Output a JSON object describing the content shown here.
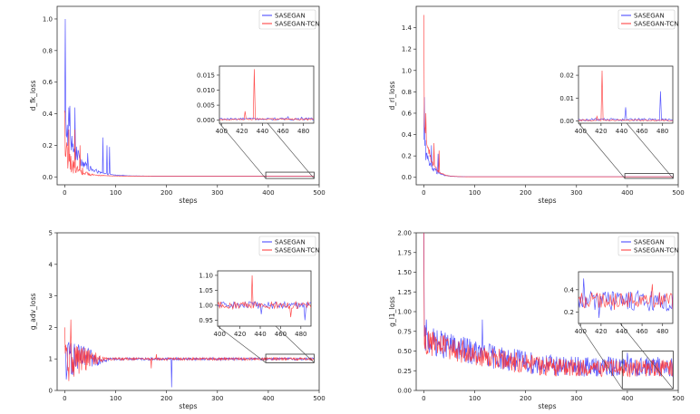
{
  "chart_data": [
    {
      "id": "d_fk",
      "type": "line",
      "title": "",
      "xlabel": "steps",
      "ylabel": "d_fk_loss",
      "xlim": [
        -15,
        500
      ],
      "ylim": [
        -0.05,
        1.08
      ],
      "xticks": [
        0,
        100,
        200,
        300,
        400,
        500
      ],
      "yticks": [
        0.0,
        0.2,
        0.4,
        0.6,
        0.8,
        1.0
      ],
      "ytick_labels": [
        "0.0",
        "0.2",
        "0.4",
        "0.6",
        "0.8",
        "1.0"
      ],
      "legend": [
        "SASEGAN",
        "SASEGAN-TCN"
      ],
      "legend_position": "top-right",
      "series": [
        {
          "name": "SASEGAN",
          "color": "#3b3bff",
          "kind": "spiky_decay",
          "start": 1.0,
          "floor": 0.005,
          "decay": 25,
          "noise": 0.12,
          "spikes": [
            [
              1,
              1.0
            ],
            [
              10,
              0.45
            ],
            [
              20,
              0.44
            ],
            [
              45,
              0.15
            ],
            [
              75,
              0.25
            ],
            [
              83,
              0.2
            ],
            [
              88,
              0.19
            ]
          ]
        },
        {
          "name": "SASEGAN-TCN",
          "color": "#ff3030",
          "kind": "spiky_decay",
          "start": 0.4,
          "floor": 0.005,
          "decay": 20,
          "noise": 0.1,
          "spikes": [
            [
              0,
              0.42
            ],
            [
              8,
              0.3
            ],
            [
              20,
              0.3
            ],
            [
              30,
              0.2
            ]
          ]
        }
      ],
      "inset": {
        "xlim": [
          398,
          490
        ],
        "ylim": [
          -0.001,
          0.018
        ],
        "xticks": [
          400,
          420,
          440,
          460,
          480
        ],
        "yticks": [
          0.0,
          0.005,
          0.01,
          0.015
        ],
        "ytick_labels": [
          "0.000",
          "0.005",
          "0.010",
          "0.015"
        ],
        "zoom_x": [
          395,
          490
        ],
        "zoom_y": [
          -0.01,
          0.03
        ],
        "series": [
          {
            "name": "SASEGAN",
            "color": "#3b3bff",
            "base": 0.0004,
            "noise": 0.0004,
            "spikes": [
              [
                465,
                0.0012
              ],
              [
                478,
                0.001
              ]
            ]
          },
          {
            "name": "SASEGAN-TCN",
            "color": "#ff3030",
            "base": 0.0003,
            "noise": 0.0003,
            "spikes": [
              [
                423,
                0.003
              ],
              [
                432,
                0.017
              ]
            ]
          }
        ]
      }
    },
    {
      "id": "d_rl",
      "type": "line",
      "title": "",
      "xlabel": "steps",
      "ylabel": "d_rl_loss",
      "xlim": [
        -15,
        500
      ],
      "ylim": [
        -0.07,
        1.6
      ],
      "xticks": [
        0,
        100,
        200,
        300,
        400,
        500
      ],
      "yticks": [
        0.0,
        0.2,
        0.4,
        0.6,
        0.8,
        1.0,
        1.2,
        1.4
      ],
      "ytick_labels": [
        "0.0",
        "0.2",
        "0.4",
        "0.6",
        "0.8",
        "1.0",
        "1.2",
        "1.4"
      ],
      "legend": [
        "SASEGAN",
        "SASEGAN-TCN"
      ],
      "legend_position": "top-right",
      "series": [
        {
          "name": "SASEGAN",
          "color": "#3b3bff",
          "kind": "spiky_decay",
          "start": 0.75,
          "floor": 0.005,
          "decay": 14,
          "noise": 0.1,
          "spikes": [
            [
              1,
              0.75
            ],
            [
              15,
              0.3
            ],
            [
              28,
              0.22
            ]
          ]
        },
        {
          "name": "SASEGAN-TCN",
          "color": "#ff3030",
          "kind": "spiky_decay",
          "start": 1.52,
          "floor": 0.005,
          "decay": 12,
          "noise": 0.08,
          "spikes": [
            [
              0,
              1.52
            ],
            [
              4,
              0.6
            ],
            [
              20,
              0.32
            ],
            [
              30,
              0.25
            ]
          ]
        }
      ],
      "inset": {
        "xlim": [
          398,
          490
        ],
        "ylim": [
          -0.001,
          0.024
        ],
        "xticks": [
          400,
          420,
          440,
          460,
          480
        ],
        "yticks": [
          0.0,
          0.01,
          0.02
        ],
        "ytick_labels": [
          "0.00",
          "0.01",
          "0.02"
        ],
        "zoom_x": [
          395,
          490
        ],
        "zoom_y": [
          -0.01,
          0.035
        ],
        "series": [
          {
            "name": "SASEGAN",
            "color": "#3b3bff",
            "base": 0.0006,
            "noise": 0.0006,
            "spikes": [
              [
                444,
                0.006
              ],
              [
                478,
                0.013
              ]
            ]
          },
          {
            "name": "SASEGAN-TCN",
            "color": "#ff3030",
            "base": 0.0003,
            "noise": 0.0003,
            "spikes": [
              [
                416,
                0.002
              ],
              [
                421,
                0.022
              ]
            ]
          }
        ]
      }
    },
    {
      "id": "g_adv",
      "type": "line",
      "title": "",
      "xlabel": "steps",
      "ylabel": "g_adv_loss",
      "xlim": [
        -15,
        500
      ],
      "ylim": [
        0,
        5
      ],
      "xticks": [
        0,
        100,
        200,
        300,
        400,
        500
      ],
      "yticks": [
        0,
        1,
        2,
        3,
        4,
        5
      ],
      "ytick_labels": [
        "0",
        "1",
        "2",
        "3",
        "4",
        "5"
      ],
      "legend": [
        "SASEGAN",
        "SASEGAN-TCN"
      ],
      "legend_position": "top-right",
      "series": [
        {
          "name": "SASEGAN",
          "color": "#3b3bff",
          "kind": "noisy_settle",
          "settle": 1.0,
          "start_noise": 0.6,
          "settle_noise": 0.04,
          "settle_steps": 90,
          "spikes": [
            [
              0,
              1.4
            ],
            [
              3,
              0.35
            ],
            [
              210,
              0.1
            ],
            [
              12,
              1.5
            ]
          ]
        },
        {
          "name": "SASEGAN-TCN",
          "color": "#ff3030",
          "kind": "noisy_settle",
          "settle": 1.0,
          "start_noise": 0.7,
          "settle_noise": 0.04,
          "settle_steps": 80,
          "spikes": [
            [
              0,
              2.0
            ],
            [
              12,
              2.25
            ],
            [
              8,
              0.3
            ],
            [
              170,
              0.7
            ],
            [
              180,
              1.15
            ]
          ]
        }
      ],
      "inset": {
        "xlim": [
          398,
          490
        ],
        "ylim": [
          0.93,
          1.115
        ],
        "xticks": [
          400,
          420,
          440,
          460,
          480
        ],
        "yticks": [
          0.95,
          1.0,
          1.05,
          1.1
        ],
        "ytick_labels": [
          "0.95",
          "1.00",
          "1.05",
          "1.10"
        ],
        "zoom_x": [
          395,
          490
        ],
        "zoom_y": [
          0.88,
          1.15
        ],
        "series": [
          {
            "name": "SASEGAN",
            "color": "#3b3bff",
            "base": 1.0,
            "noise": 0.012,
            "spikes": [
              [
                441,
                0.97
              ],
              [
                484,
                0.95
              ]
            ]
          },
          {
            "name": "SASEGAN-TCN",
            "color": "#ff3030",
            "base": 1.0,
            "noise": 0.012,
            "spikes": [
              [
                432,
                1.1
              ],
              [
                470,
                0.96
              ]
            ]
          }
        ]
      }
    },
    {
      "id": "g_l1",
      "type": "line",
      "title": "",
      "xlabel": "steps",
      "ylabel": "g_l1_loss",
      "xlim": [
        -15,
        500
      ],
      "ylim": [
        0,
        2.0
      ],
      "xticks": [
        0,
        100,
        200,
        300,
        400,
        500
      ],
      "yticks": [
        0.0,
        0.25,
        0.5,
        0.75,
        1.0,
        1.25,
        1.5,
        1.75,
        2.0
      ],
      "ytick_labels": [
        "0.00",
        "0.25",
        "0.50",
        "0.75",
        "1.00",
        "1.25",
        "1.50",
        "1.75",
        "2.00"
      ],
      "legend": [
        "SASEGAN",
        "SASEGAN-TCN"
      ],
      "legend_position": "top-right",
      "series": [
        {
          "name": "SASEGAN",
          "color": "#3b3bff",
          "kind": "noisy_trend",
          "start": 0.65,
          "end": 0.3,
          "noise": 0.18,
          "spikes": [
            [
              0,
              2.0
            ],
            [
              5,
              0.9
            ],
            [
              115,
              0.9
            ],
            [
              400,
              0.48
            ]
          ]
        },
        {
          "name": "SASEGAN-TCN",
          "color": "#ff3030",
          "kind": "noisy_trend",
          "start": 0.62,
          "end": 0.28,
          "noise": 0.16,
          "spikes": [
            [
              0,
              2.0
            ],
            [
              3,
              0.8
            ]
          ]
        }
      ],
      "inset": {
        "xlim": [
          398,
          490
        ],
        "ylim": [
          0.1,
          0.56
        ],
        "xticks": [
          400,
          420,
          440,
          460,
          480
        ],
        "yticks": [
          0.2,
          0.4
        ],
        "ytick_labels": [
          "0.2",
          "0.4"
        ],
        "zoom_x": [
          390,
          490
        ],
        "zoom_y": [
          0.02,
          0.5
        ],
        "series": [
          {
            "name": "SASEGAN",
            "color": "#3b3bff",
            "base": 0.3,
            "noise": 0.09,
            "spikes": [
              [
                403,
                0.5
              ],
              [
                418,
                0.15
              ]
            ]
          },
          {
            "name": "SASEGAN-TCN",
            "color": "#ff3030",
            "base": 0.3,
            "noise": 0.08,
            "spikes": [
              [
                470,
                0.45
              ]
            ]
          }
        ]
      }
    }
  ]
}
